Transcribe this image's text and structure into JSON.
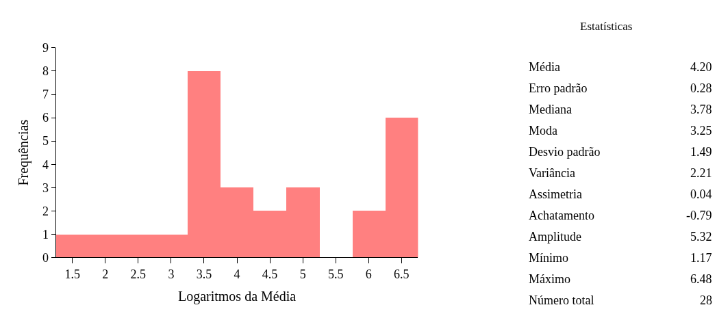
{
  "chart_data": [
    {
      "type": "bar",
      "xlabel": "Logaritmos da Média",
      "ylabel": "Frequências",
      "categories": [
        "1.5",
        "2",
        "2.5",
        "3",
        "3.5",
        "4",
        "4.5",
        "5",
        "5.5",
        "6",
        "6.5"
      ],
      "values": [
        1,
        1,
        1,
        1,
        8,
        3,
        2,
        3,
        0,
        2,
        6
      ],
      "color": "#ff8080",
      "ylim": [
        0,
        9
      ],
      "yticks": [
        0,
        1,
        2,
        3,
        4,
        5,
        6,
        7,
        8,
        9
      ],
      "legend": false
    },
    {
      "type": "other",
      "title": "Estatísticas",
      "annotations": [
        "Média",
        "4.20",
        "Erro padrão",
        "0.28",
        "Mediana",
        "3.78",
        "Moda",
        "3.25",
        "Desvio padrão",
        "1.49",
        "Variância",
        "2.21",
        "Assimetria",
        "0.04",
        "Achatamento",
        "-0.79",
        "Amplitude",
        "5.32",
        "Mínimo",
        "1.17",
        "Máximo",
        "6.48",
        "Número total",
        "28"
      ]
    }
  ]
}
